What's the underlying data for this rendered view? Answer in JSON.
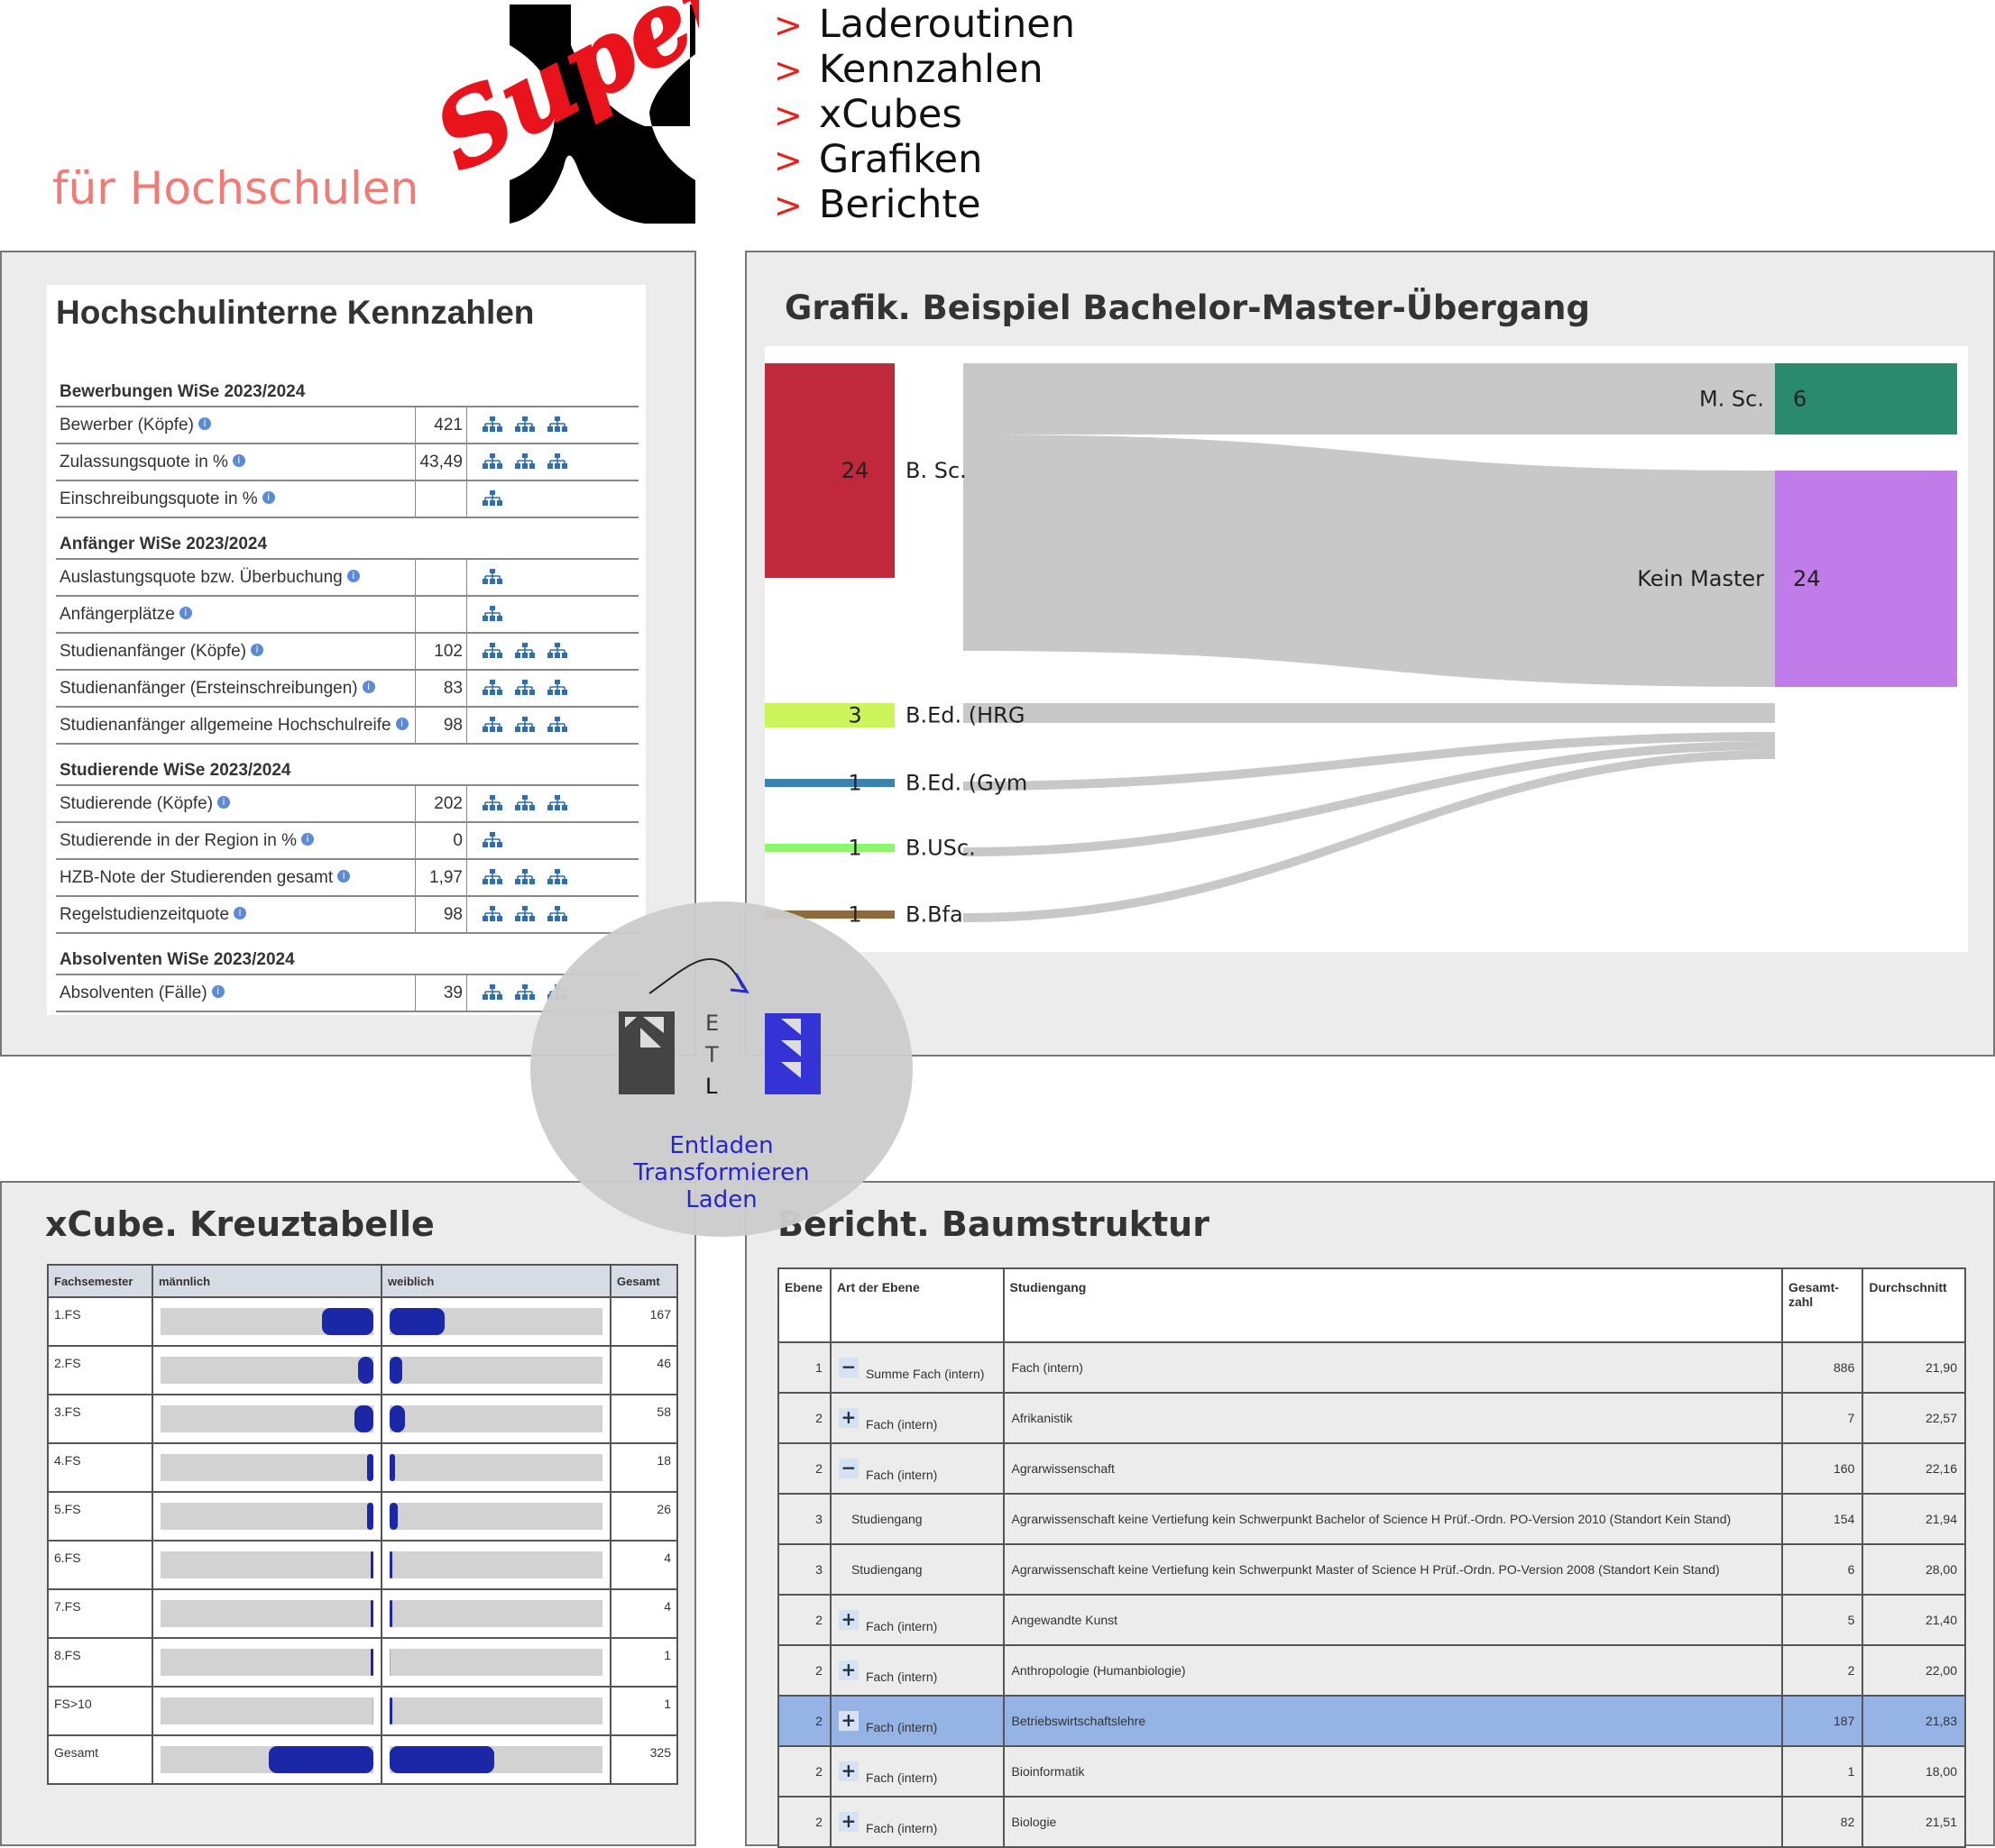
{
  "header": {
    "subtitle": "für Hochschulen",
    "logo_script": "Super",
    "menu": [
      "Laderoutinen",
      "Kennzahlen",
      "xCubes",
      "Grafiken",
      "Berichte"
    ],
    "menu_arrow": ">"
  },
  "kennzahlen": {
    "title": "Hochschulinterne Kennzahlen",
    "sections": [
      {
        "heading": "Bewerbungen WiSe 2023/2024",
        "rows": [
          {
            "label": "Bewerber (Köpfe)",
            "value": "421",
            "icons": 3
          },
          {
            "label": "Zulassungsquote in %",
            "value": "43,49",
            "icons": 3
          },
          {
            "label": "Einschreibungsquote in %",
            "value": "",
            "icons": 1
          }
        ]
      },
      {
        "heading": "Anfänger WiSe 2023/2024",
        "rows": [
          {
            "label": "Auslastungsquote bzw. Überbuchung",
            "value": "",
            "icons": 1
          },
          {
            "label": "Anfängerplätze",
            "value": "",
            "icons": 1
          },
          {
            "label": "Studienanfänger (Köpfe)",
            "value": "102",
            "icons": 3
          },
          {
            "label": "Studienanfänger (Ersteinschreibungen)",
            "value": "83",
            "icons": 3
          },
          {
            "label": "Studienanfänger allgemeine Hochschulreife",
            "value": "98",
            "icons": 3
          }
        ]
      },
      {
        "heading": "Studierende WiSe 2023/2024",
        "rows": [
          {
            "label": "Studierende (Köpfe)",
            "value": "202",
            "icons": 3
          },
          {
            "label": "Studierende in der Region in %",
            "value": "0",
            "icons": 1
          },
          {
            "label": "HZB-Note der Studierenden gesamt",
            "value": "1,97",
            "icons": 3
          },
          {
            "label": "Regelstudienzeitquote",
            "value": "98",
            "icons": 3
          }
        ]
      },
      {
        "heading": "Absolventen WiSe 2023/2024",
        "rows": [
          {
            "label": "Absolventen (Fälle)",
            "value": "39",
            "icons": 3
          }
        ]
      }
    ]
  },
  "grafik": {
    "title": "Grafik. Beispiel Bachelor-Master-Übergang",
    "sources": [
      {
        "label": "B. Sc.",
        "value": "24",
        "color": "#c0293b"
      },
      {
        "label": "B.Ed. (HRG",
        "value": "3",
        "color": "#ccf55c"
      },
      {
        "label": "B.Ed. (Gym",
        "value": "1",
        "color": "#3a82b4"
      },
      {
        "label": "B.USc.",
        "value": "1",
        "color": "#8ef56e"
      },
      {
        "label": "B.Bfa",
        "value": "1",
        "color": "#8c6a3c"
      }
    ],
    "targets": [
      {
        "label": "M. Sc.",
        "value": "6",
        "color": "#2a8a6e"
      },
      {
        "label": "Kein Master",
        "value": "24",
        "color": "#c07ce8"
      }
    ]
  },
  "etl": {
    "letters": [
      "E",
      "T",
      "L"
    ],
    "caption": [
      "Entladen",
      "Transformieren",
      "Laden"
    ]
  },
  "xcube": {
    "title": "xCube. Kreuztabelle",
    "headers": [
      "Fachsemester",
      "männlich",
      "weiblich",
      "Gesamt"
    ],
    "rows": [
      {
        "label": "1.FS",
        "m": 0.24,
        "w": 0.26,
        "total": "167"
      },
      {
        "label": "2.FS",
        "m": 0.07,
        "w": 0.06,
        "total": "46"
      },
      {
        "label": "3.FS",
        "m": 0.09,
        "w": 0.07,
        "total": "58"
      },
      {
        "label": "4.FS",
        "m": 0.03,
        "w": 0.025,
        "total": "18"
      },
      {
        "label": "5.FS",
        "m": 0.03,
        "w": 0.04,
        "total": "26"
      },
      {
        "label": "6.FS",
        "m": 0.006,
        "w": 0.006,
        "total": "4"
      },
      {
        "label": "7.FS",
        "m": 0.006,
        "w": 0.006,
        "total": "4"
      },
      {
        "label": "8.FS",
        "m": 0.003,
        "w": 0.0,
        "total": "1"
      },
      {
        "label": "FS>10",
        "m": 0.0,
        "w": 0.003,
        "total": "1"
      },
      {
        "label": "Gesamt",
        "m": 0.49,
        "w": 0.49,
        "total": "325"
      }
    ]
  },
  "bericht": {
    "title": "Bericht. Baumstruktur",
    "headers": [
      "Ebene",
      "Art der Ebene",
      "Studiengang",
      "Gesamt-zahl",
      "Durchschnitt"
    ],
    "rows": [
      {
        "ebene": "1",
        "toggle": "−",
        "art": "Summe Fach (intern)",
        "studiengang": "Fach (intern)",
        "gesamt": "886",
        "avg": "21,90",
        "hl": false
      },
      {
        "ebene": "2",
        "toggle": "+",
        "art": "Fach (intern)",
        "studiengang": "Afrikanistik",
        "gesamt": "7",
        "avg": "22,57",
        "hl": false
      },
      {
        "ebene": "2",
        "toggle": "−",
        "art": "Fach (intern)",
        "studiengang": "Agrarwissenschaft",
        "gesamt": "160",
        "avg": "22,16",
        "hl": false
      },
      {
        "ebene": "3",
        "toggle": "",
        "art": "Studiengang",
        "studiengang": "Agrarwissenschaft keine Vertiefung kein Schwerpunkt Bachelor of Science H Prüf.-Ordn. PO-Version 2010 (Standort Kein Stand)",
        "gesamt": "154",
        "avg": "21,94",
        "hl": false
      },
      {
        "ebene": "3",
        "toggle": "",
        "art": "Studiengang",
        "studiengang": "Agrarwissenschaft keine Vertiefung kein Schwerpunkt Master of Science H Prüf.-Ordn. PO-Version 2008 (Standort Kein Stand)",
        "gesamt": "6",
        "avg": "28,00",
        "hl": false
      },
      {
        "ebene": "2",
        "toggle": "+",
        "art": "Fach (intern)",
        "studiengang": "Angewandte Kunst",
        "gesamt": "5",
        "avg": "21,40",
        "hl": false
      },
      {
        "ebene": "2",
        "toggle": "+",
        "art": "Fach (intern)",
        "studiengang": "Anthropologie (Humanbiologie)",
        "gesamt": "2",
        "avg": "22,00",
        "hl": false
      },
      {
        "ebene": "2",
        "toggle": "+",
        "art": "Fach (intern)",
        "studiengang": "Betriebswirtschaftslehre",
        "gesamt": "187",
        "avg": "21,83",
        "hl": true
      },
      {
        "ebene": "2",
        "toggle": "+",
        "art": "Fach (intern)",
        "studiengang": "Bioinformatik",
        "gesamt": "1",
        "avg": "18,00",
        "hl": false
      },
      {
        "ebene": "2",
        "toggle": "+",
        "art": "Fach (intern)",
        "studiengang": "Biologie",
        "gesamt": "82",
        "avg": "21,51",
        "hl": false
      }
    ]
  }
}
